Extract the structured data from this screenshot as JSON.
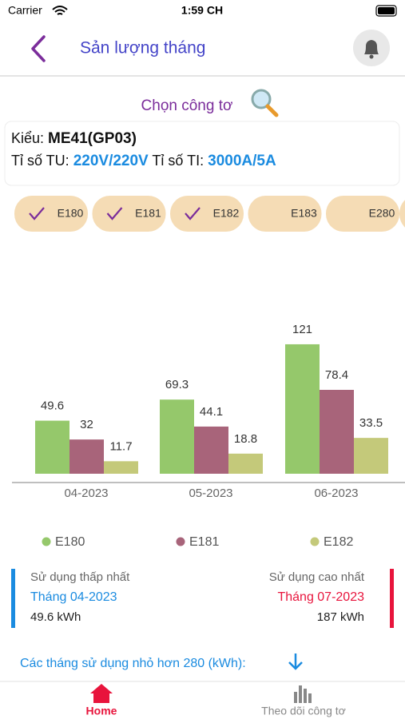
{
  "status_bar": {
    "carrier": "Carrier",
    "time": "1:59 CH"
  },
  "header": {
    "title": "Sản lượng tháng"
  },
  "meter": {
    "select_label": "Chọn công tơ",
    "type_label": "Kiểu:",
    "type_value": "ME41(GP03)",
    "tu_label": "Tỉ số TU:",
    "tu_value": "220V/220V",
    "ti_label": "Tỉ số TI:",
    "ti_value": "3000A/5A"
  },
  "chips": [
    {
      "label": "E180",
      "checked": true
    },
    {
      "label": "E181",
      "checked": true
    },
    {
      "label": "E182",
      "checked": true
    },
    {
      "label": "E183",
      "checked": false
    },
    {
      "label": "E280",
      "checked": false
    }
  ],
  "chart_data": {
    "type": "bar",
    "categories": [
      "04-2023",
      "05-2023",
      "06-2023"
    ],
    "series": [
      {
        "name": "E180",
        "color": "#95c86b",
        "values": [
          49.6,
          69.3,
          121
        ]
      },
      {
        "name": "E181",
        "color": "#a8647a",
        "values": [
          32,
          44.1,
          78.4
        ]
      },
      {
        "name": "E182",
        "color": "#c4c97a",
        "values": [
          11.7,
          18.8,
          33.5
        ]
      }
    ],
    "ylim": [
      0,
      140
    ]
  },
  "stats": {
    "min": {
      "label": "Sử dụng thấp nhất",
      "month": "Tháng 04-2023",
      "value": "49.6 kWh"
    },
    "max": {
      "label": "Sử dụng cao nhất",
      "month": "Tháng 07-2023",
      "value": "187 kWh"
    }
  },
  "filter_note": "Các tháng sử dụng nhỏ hơn 280 (kWh):",
  "tabs": {
    "home": "Home",
    "track": "Theo dõi công tơ"
  }
}
